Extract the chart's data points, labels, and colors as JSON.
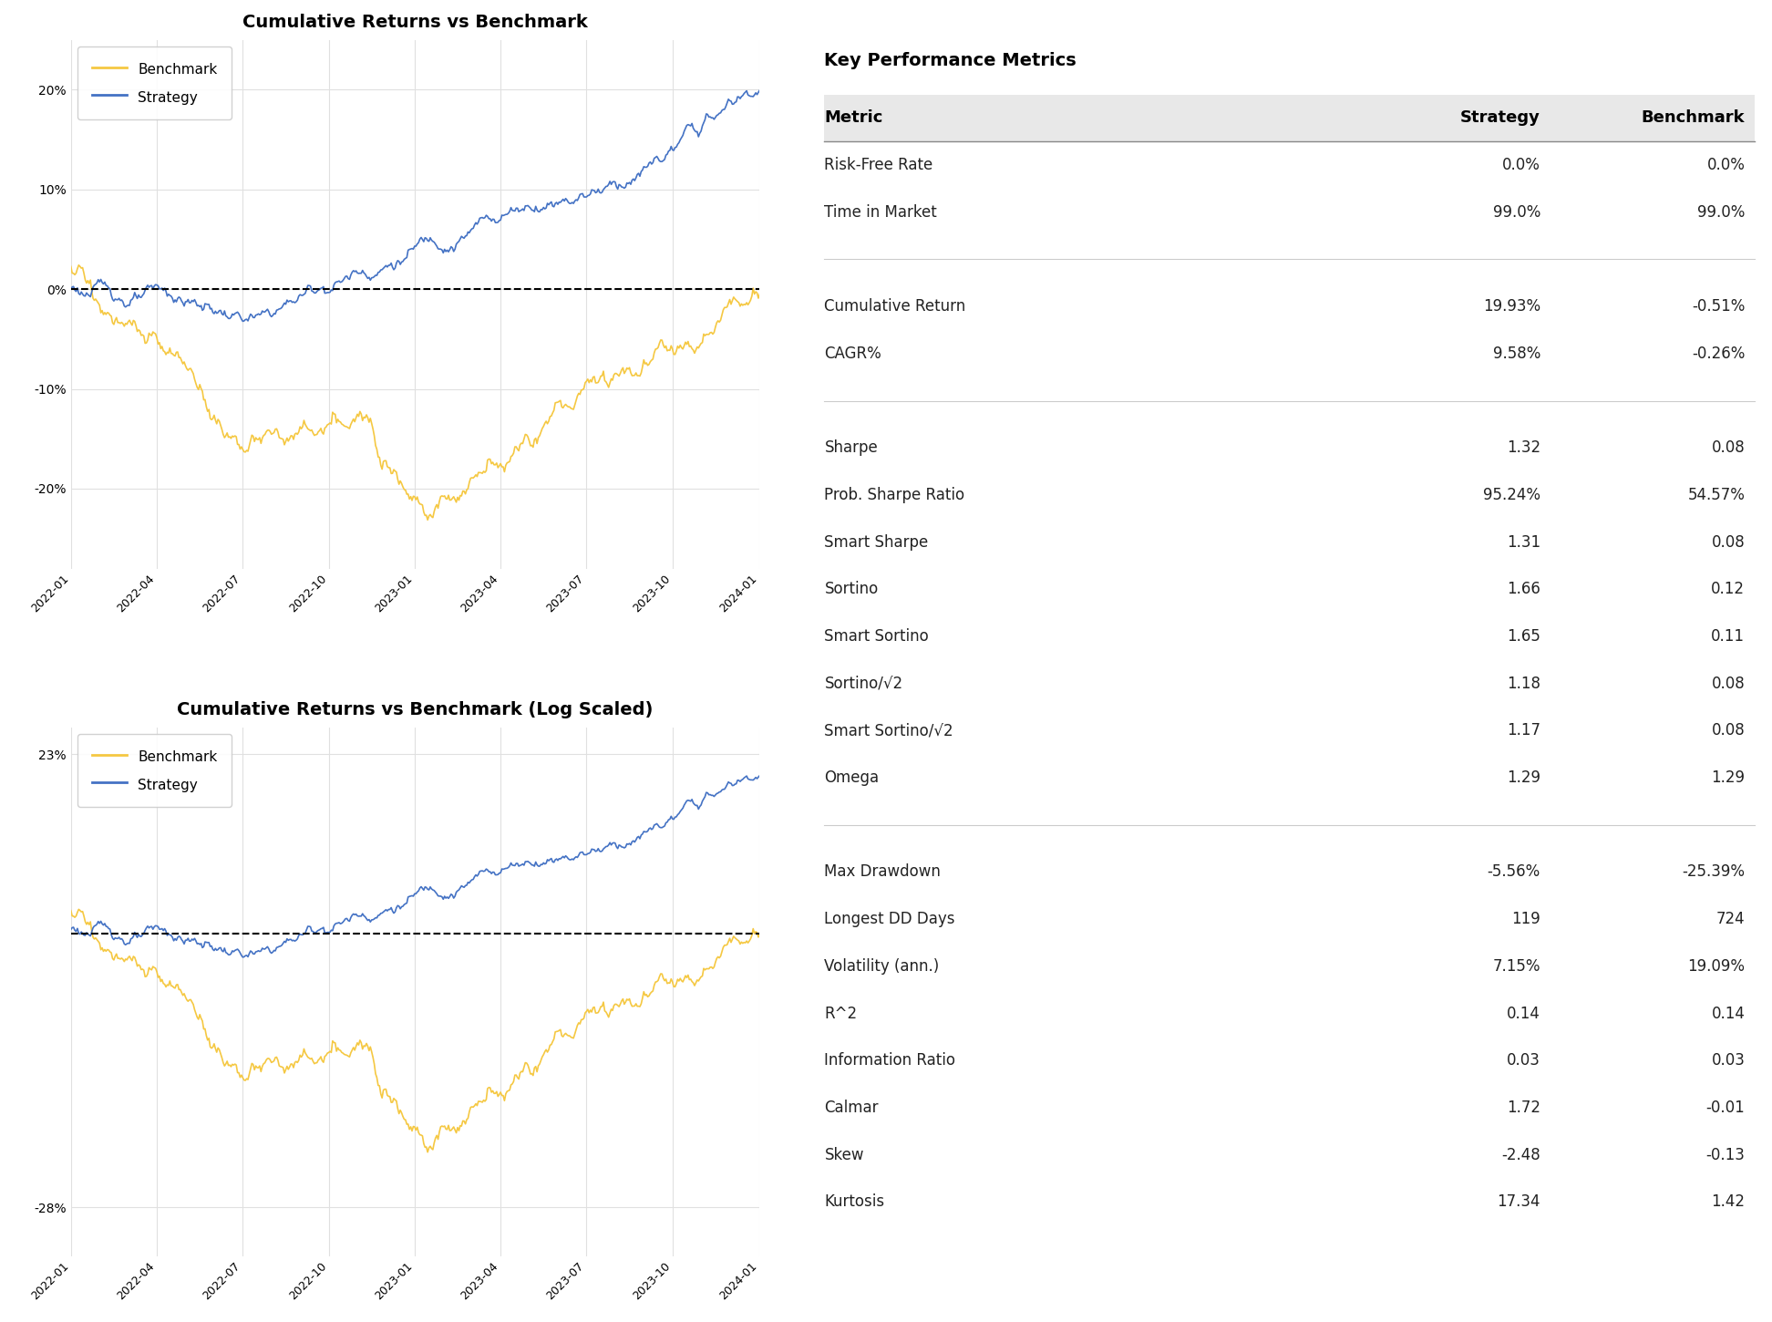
{
  "title1": "Cumulative Returns vs Benchmark",
  "title2": "Cumulative Returns vs Benchmark (Log Scaled)",
  "table_title": "Key Performance Metrics",
  "benchmark_color": "#f5c842",
  "strategy_color": "#4472c4",
  "background_color": "#ffffff",
  "grid_color": "#e0e0e0",
  "metrics": [
    [
      "Risk-Free Rate",
      "0.0%",
      "0.0%"
    ],
    [
      "Time in Market",
      "99.0%",
      "99.0%"
    ],
    [
      "",
      "",
      ""
    ],
    [
      "Cumulative Return",
      "19.93%",
      "-0.51%"
    ],
    [
      "CAGR%",
      "9.58%",
      "-0.26%"
    ],
    [
      "",
      "",
      ""
    ],
    [
      "Sharpe",
      "1.32",
      "0.08"
    ],
    [
      "Prob. Sharpe Ratio",
      "95.24%",
      "54.57%"
    ],
    [
      "Smart Sharpe",
      "1.31",
      "0.08"
    ],
    [
      "Sortino",
      "1.66",
      "0.12"
    ],
    [
      "Smart Sortino",
      "1.65",
      "0.11"
    ],
    [
      "Sortino/√2",
      "1.18",
      "0.08"
    ],
    [
      "Smart Sortino/√2",
      "1.17",
      "0.08"
    ],
    [
      "Omega",
      "1.29",
      "1.29"
    ],
    [
      "",
      "",
      ""
    ],
    [
      "Max Drawdown",
      "-5.56%",
      "-25.39%"
    ],
    [
      "Longest DD Days",
      "119",
      "724"
    ],
    [
      "Volatility (ann.)",
      "7.15%",
      "19.09%"
    ],
    [
      "R^2",
      "0.14",
      "0.14"
    ],
    [
      "Information Ratio",
      "0.03",
      "0.03"
    ],
    [
      "Calmar",
      "1.72",
      "-0.01"
    ],
    [
      "Skew",
      "-2.48",
      "-0.13"
    ],
    [
      "Kurtosis",
      "17.34",
      "1.42"
    ]
  ],
  "col_headers": [
    "Metric",
    "Strategy",
    "Benchmark"
  ],
  "x_ticks": [
    "2022-01",
    "2022-04",
    "2022-07",
    "2022-10",
    "2023-01",
    "2023-04",
    "2023-07",
    "2023-10",
    "2024-01"
  ],
  "n_points": 530
}
